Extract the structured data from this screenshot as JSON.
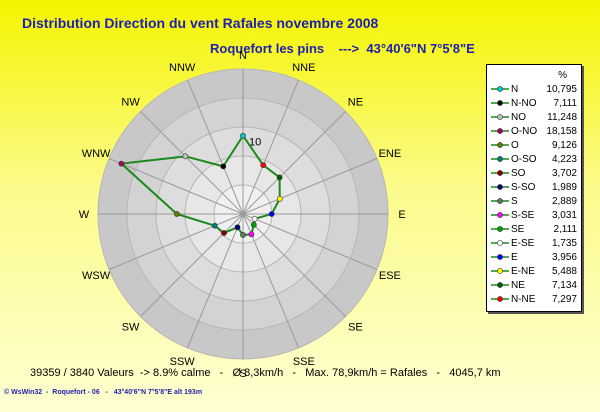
{
  "chart_data": {
    "type": "radar",
    "title": "Distribution Direction du vent Rafales  novembre 2008",
    "subtitle": "Roquefort les pins    --->  43°40'6\"N 7°5'8\"E",
    "directions": [
      "N",
      "NNE",
      "NE",
      "ENE",
      "E",
      "ESE",
      "SE",
      "SSE",
      "S",
      "SSW",
      "SW",
      "WSW",
      "W",
      "WNW",
      "NW",
      "NNW"
    ],
    "ring_label": "10",
    "legend_unit": "%",
    "series": [
      {
        "name": "N",
        "value": "10,795",
        "color": "#00c8c8",
        "dir": "N"
      },
      {
        "name": "N-NO",
        "value": "7,111",
        "color": "#000000",
        "dir": "NNW"
      },
      {
        "name": "NO",
        "value": "11,248",
        "color": "#c0c0c0",
        "dir": "NW"
      },
      {
        "name": "O-NO",
        "value": "18,158",
        "color": "#aa0060",
        "dir": "WNW"
      },
      {
        "name": "O",
        "value": "9,126",
        "color": "#6a7a00",
        "dir": "W"
      },
      {
        "name": "O-SO",
        "value": "4,223",
        "color": "#007a7a",
        "dir": "WSW"
      },
      {
        "name": "SO",
        "value": "3,702",
        "color": "#8a0000",
        "dir": "SW"
      },
      {
        "name": "S-SO",
        "value": "1,989",
        "color": "#00007a",
        "dir": "SSW"
      },
      {
        "name": "S",
        "value": "2,889",
        "color": "#5a7a5a",
        "dir": "S"
      },
      {
        "name": "S-SE",
        "value": "3,031",
        "color": "#ff00ff",
        "dir": "SSE"
      },
      {
        "name": "SE",
        "value": "2,111",
        "color": "#00a000",
        "dir": "SE"
      },
      {
        "name": "E-SE",
        "value": "1,735",
        "color": "#ffffff",
        "dir": "ESE"
      },
      {
        "name": "E",
        "value": "3,956",
        "color": "#0000ff",
        "dir": "E"
      },
      {
        "name": "E-NE",
        "value": "5,488",
        "color": "#ffff00",
        "dir": "ENE"
      },
      {
        "name": "NE",
        "value": "7,134",
        "color": "#006000",
        "dir": "NE"
      },
      {
        "name": "N-NE",
        "value": "7,297",
        "color": "#ff0000",
        "dir": "NNE"
      }
    ]
  },
  "footer": {
    "stats": "39359 / 3840 Valeurs  -> 8.9% calme   -   Ø 8,3km/h   -   Max. 78,9km/h = Rafales   -   4045,7 km",
    "credit": "© WsWin32  -  Roquefort - 06   -   43°40'6\"N 7°5'8\"E alt 193m"
  }
}
